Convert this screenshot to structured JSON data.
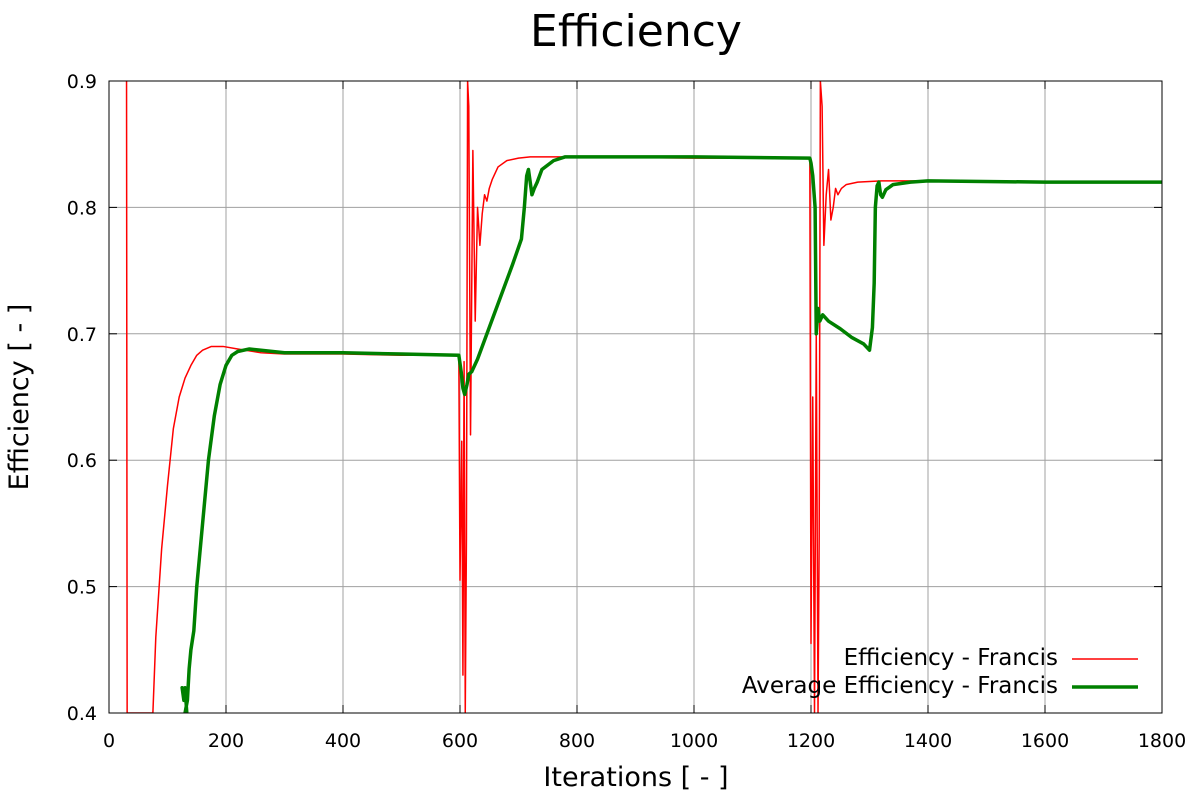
{
  "chart_data": {
    "type": "line",
    "title": "Efficiency",
    "xlabel": "Iterations [ - ]",
    "ylabel": "Efficiency [ - ]",
    "xlim": [
      0,
      1800
    ],
    "ylim": [
      0.4,
      0.9
    ],
    "xticks": [
      0,
      200,
      400,
      600,
      800,
      1000,
      1200,
      1400,
      1600,
      1800
    ],
    "xtick_labels": [
      "0",
      "200",
      "400",
      "600",
      "800",
      "1000",
      "1200",
      "1400",
      "1600",
      "1800"
    ],
    "yticks": [
      0.4,
      0.5,
      0.6,
      0.7,
      0.8,
      0.9
    ],
    "ytick_labels": [
      "0.4",
      "0.5",
      "0.6",
      "0.7",
      "0.8",
      "0.9"
    ],
    "grid": true,
    "legend_position": "bottom-right",
    "series": [
      {
        "name": "Efficiency - Francis",
        "color": "#ff0000",
        "line_width": 1.5,
        "points": [
          [
            30,
            0.9
          ],
          [
            31,
            0.4
          ],
          [
            75,
            0.4
          ],
          [
            80,
            0.46
          ],
          [
            90,
            0.53
          ],
          [
            100,
            0.58
          ],
          [
            110,
            0.625
          ],
          [
            120,
            0.65
          ],
          [
            130,
            0.665
          ],
          [
            140,
            0.675
          ],
          [
            150,
            0.683
          ],
          [
            160,
            0.687
          ],
          [
            175,
            0.69
          ],
          [
            195,
            0.69
          ],
          [
            220,
            0.688
          ],
          [
            260,
            0.685
          ],
          [
            300,
            0.684
          ],
          [
            400,
            0.684
          ],
          [
            500,
            0.683
          ],
          [
            598,
            0.683
          ],
          [
            600,
            0.505
          ],
          [
            603,
            0.615
          ],
          [
            605,
            0.43
          ],
          [
            607,
            0.678
          ],
          [
            609,
            0.4
          ],
          [
            611,
            0.538
          ],
          [
            613,
            0.9
          ],
          [
            615,
            0.88
          ],
          [
            618,
            0.62
          ],
          [
            622,
            0.845
          ],
          [
            626,
            0.71
          ],
          [
            630,
            0.8
          ],
          [
            634,
            0.77
          ],
          [
            638,
            0.795
          ],
          [
            642,
            0.81
          ],
          [
            646,
            0.805
          ],
          [
            650,
            0.815
          ],
          [
            655,
            0.822
          ],
          [
            665,
            0.832
          ],
          [
            680,
            0.837
          ],
          [
            700,
            0.839
          ],
          [
            720,
            0.84
          ],
          [
            800,
            0.84
          ],
          [
            1000,
            0.839
          ],
          [
            1198,
            0.839
          ],
          [
            1200,
            0.455
          ],
          [
            1203,
            0.65
          ],
          [
            1206,
            0.4
          ],
          [
            1209,
            0.7
          ],
          [
            1212,
            0.4
          ],
          [
            1214,
            0.54
          ],
          [
            1216,
            0.9
          ],
          [
            1219,
            0.88
          ],
          [
            1222,
            0.77
          ],
          [
            1226,
            0.81
          ],
          [
            1230,
            0.83
          ],
          [
            1234,
            0.79
          ],
          [
            1238,
            0.8
          ],
          [
            1242,
            0.815
          ],
          [
            1246,
            0.81
          ],
          [
            1252,
            0.815
          ],
          [
            1260,
            0.818
          ],
          [
            1280,
            0.82
          ],
          [
            1320,
            0.821
          ],
          [
            1400,
            0.821
          ],
          [
            1600,
            0.82
          ],
          [
            1800,
            0.82
          ]
        ]
      },
      {
        "name": "Average Efficiency - Francis",
        "color": "#008000",
        "line_width": 3.5,
        "points": [
          [
            125,
            0.42
          ],
          [
            128,
            0.41
          ],
          [
            130,
            0.42
          ],
          [
            133,
            0.4
          ],
          [
            130,
            0.4
          ],
          [
            134,
            0.41
          ],
          [
            137,
            0.435
          ],
          [
            140,
            0.45
          ],
          [
            145,
            0.465
          ],
          [
            150,
            0.5
          ],
          [
            160,
            0.55
          ],
          [
            170,
            0.6
          ],
          [
            180,
            0.635
          ],
          [
            190,
            0.66
          ],
          [
            200,
            0.675
          ],
          [
            210,
            0.683
          ],
          [
            220,
            0.686
          ],
          [
            240,
            0.688
          ],
          [
            260,
            0.687
          ],
          [
            300,
            0.685
          ],
          [
            400,
            0.685
          ],
          [
            500,
            0.684
          ],
          [
            598,
            0.683
          ],
          [
            602,
            0.67
          ],
          [
            605,
            0.657
          ],
          [
            608,
            0.652
          ],
          [
            612,
            0.66
          ],
          [
            615,
            0.668
          ],
          [
            620,
            0.67
          ],
          [
            630,
            0.68
          ],
          [
            650,
            0.705
          ],
          [
            670,
            0.73
          ],
          [
            690,
            0.755
          ],
          [
            705,
            0.775
          ],
          [
            710,
            0.8
          ],
          [
            714,
            0.825
          ],
          [
            717,
            0.83
          ],
          [
            720,
            0.82
          ],
          [
            723,
            0.81
          ],
          [
            727,
            0.815
          ],
          [
            732,
            0.82
          ],
          [
            740,
            0.83
          ],
          [
            760,
            0.837
          ],
          [
            780,
            0.84
          ],
          [
            800,
            0.84
          ],
          [
            1000,
            0.84
          ],
          [
            1198,
            0.839
          ],
          [
            1200,
            0.835
          ],
          [
            1203,
            0.825
          ],
          [
            1207,
            0.8
          ],
          [
            1209,
            0.7
          ],
          [
            1212,
            0.72
          ],
          [
            1215,
            0.71
          ],
          [
            1220,
            0.715
          ],
          [
            1230,
            0.71
          ],
          [
            1250,
            0.704
          ],
          [
            1270,
            0.697
          ],
          [
            1290,
            0.692
          ],
          [
            1300,
            0.687
          ],
          [
            1305,
            0.705
          ],
          [
            1308,
            0.74
          ],
          [
            1310,
            0.8
          ],
          [
            1313,
            0.817
          ],
          [
            1316,
            0.82
          ],
          [
            1319,
            0.81
          ],
          [
            1322,
            0.808
          ],
          [
            1328,
            0.814
          ],
          [
            1340,
            0.818
          ],
          [
            1370,
            0.82
          ],
          [
            1400,
            0.821
          ],
          [
            1600,
            0.82
          ],
          [
            1800,
            0.82
          ]
        ]
      }
    ]
  }
}
